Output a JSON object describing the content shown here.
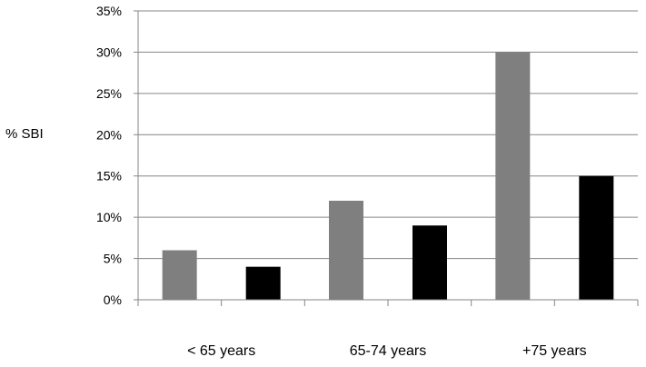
{
  "chart_data": {
    "type": "bar",
    "title": "",
    "xlabel": "",
    "ylabel": "% SBI",
    "categories": [
      "< 65 years",
      "65-74 years",
      "+75 years"
    ],
    "series": [
      {
        "values": [
          6,
          12,
          30
        ],
        "color": "#7f7f7f"
      },
      {
        "values": [
          4,
          9,
          15
        ],
        "color": "#000000"
      }
    ],
    "ylim": [
      0,
      35
    ],
    "yticks": [
      0,
      5,
      10,
      15,
      20,
      25,
      30,
      35
    ],
    "ytick_labels": [
      "0%",
      "5%",
      "10%",
      "15%",
      "20%",
      "25%",
      "30%",
      "35%"
    ],
    "grid": true,
    "legend": "none"
  }
}
